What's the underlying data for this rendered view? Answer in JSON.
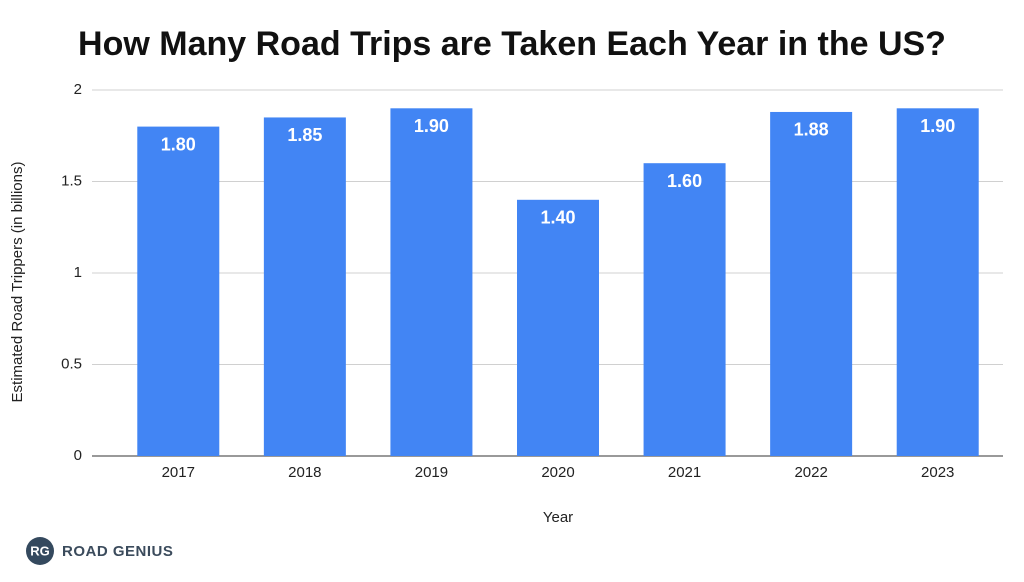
{
  "chart_data": {
    "type": "bar",
    "title": "How Many Road Trips are Taken Each Year in the US?",
    "x_label": "Year",
    "y_label": "Estimated Road Trippers (in billions)",
    "categories": [
      "2017",
      "2018",
      "2019",
      "2020",
      "2021",
      "2022",
      "2023"
    ],
    "values": [
      1.8,
      1.85,
      1.9,
      1.4,
      1.6,
      1.88,
      1.9
    ],
    "value_labels": [
      "1.80",
      "1.85",
      "1.90",
      "1.40",
      "1.60",
      "1.88",
      "1.90"
    ],
    "color": "#4285f4",
    "ylim": [
      0,
      2
    ],
    "yticks": [
      0,
      0.5,
      1,
      1.5,
      2
    ],
    "grid": true
  },
  "brand": {
    "initials": "RG",
    "name": "ROAD GENIUS"
  }
}
